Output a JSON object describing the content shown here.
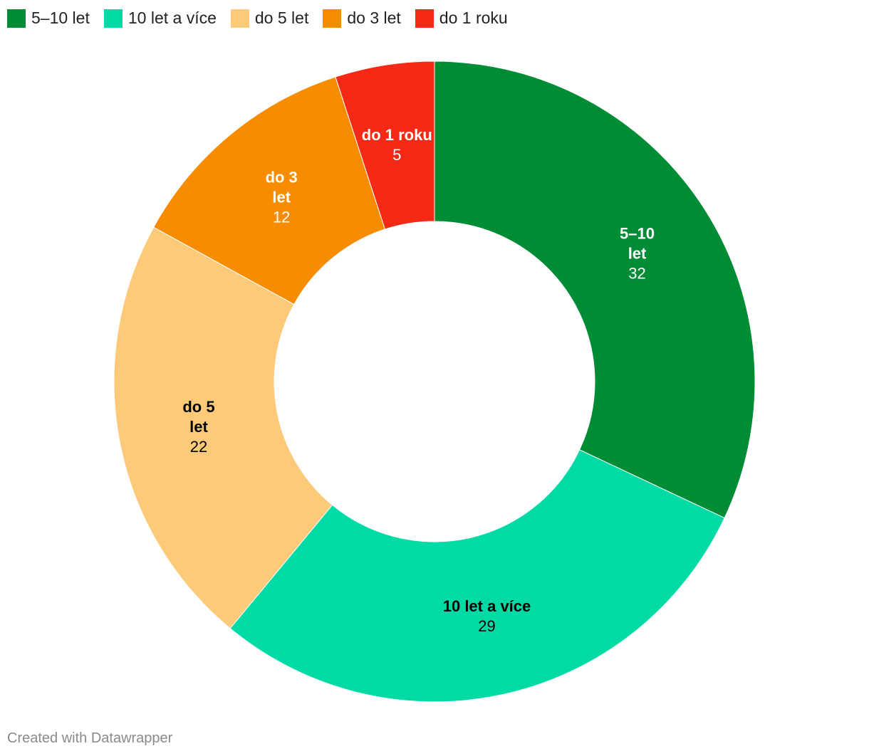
{
  "legend": [
    {
      "label": "5–10 let",
      "color": "#008b35"
    },
    {
      "label": "10 let a více",
      "color": "#00dba6"
    },
    {
      "label": "do 5 let",
      "color": "#fdca7a"
    },
    {
      "label": "do 3 let",
      "color": "#f88c00"
    },
    {
      "label": "do 1 roku",
      "color": "#f52a16"
    }
  ],
  "chart_data": {
    "type": "pie",
    "donut": true,
    "slices": [
      {
        "name": "5–10 let",
        "label_lines": [
          "5–10",
          "let"
        ],
        "value": 32,
        "color": "#008b35",
        "text_color": "#ffffff"
      },
      {
        "name": "10 let a více",
        "label_lines": [
          "10 let a více"
        ],
        "value": 29,
        "color": "#00dba6",
        "text_color": "#000000"
      },
      {
        "name": "do 5 let",
        "label_lines": [
          "do 5",
          "let"
        ],
        "value": 22,
        "color": "#fdca7a",
        "text_color": "#000000"
      },
      {
        "name": "do 3 let",
        "label_lines": [
          "do 3",
          "let"
        ],
        "value": 12,
        "color": "#f88c00",
        "text_color": "#ffffff"
      },
      {
        "name": "do 1 roku",
        "label_lines": [
          "do 1 roku"
        ],
        "value": 5,
        "color": "#f52a16",
        "text_color": "#ffffff"
      }
    ],
    "legend_position": "top-left"
  },
  "credit": "Created with Datawrapper"
}
